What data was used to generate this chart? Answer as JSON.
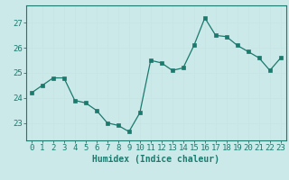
{
  "x": [
    0,
    1,
    2,
    3,
    4,
    5,
    6,
    7,
    8,
    9,
    10,
    11,
    12,
    13,
    14,
    15,
    16,
    17,
    18,
    19,
    20,
    21,
    22,
    23
  ],
  "y": [
    24.2,
    24.5,
    24.8,
    24.8,
    23.9,
    23.8,
    23.5,
    23.0,
    22.9,
    22.65,
    23.4,
    25.5,
    25.4,
    25.1,
    25.2,
    26.1,
    27.2,
    26.5,
    26.45,
    26.1,
    25.85,
    25.6,
    25.1,
    25.6
  ],
  "line_color": "#1a7a6e",
  "marker_color": "#1a7a6e",
  "bg_color": "#cce9e9",
  "grid_color": "#e8d8d8",
  "xlabel": "Humidex (Indice chaleur)",
  "ylabel_ticks": [
    23,
    24,
    25,
    26,
    27
  ],
  "ylim": [
    22.3,
    27.7
  ],
  "xlim": [
    -0.5,
    23.5
  ],
  "xticks": [
    0,
    1,
    2,
    3,
    4,
    5,
    6,
    7,
    8,
    9,
    10,
    11,
    12,
    13,
    14,
    15,
    16,
    17,
    18,
    19,
    20,
    21,
    22,
    23
  ],
  "tick_color": "#1a7a6e",
  "label_color": "#1a7a6e",
  "axis_color": "#1a7a6e",
  "font_size_label": 7,
  "font_size_tick": 6.5
}
